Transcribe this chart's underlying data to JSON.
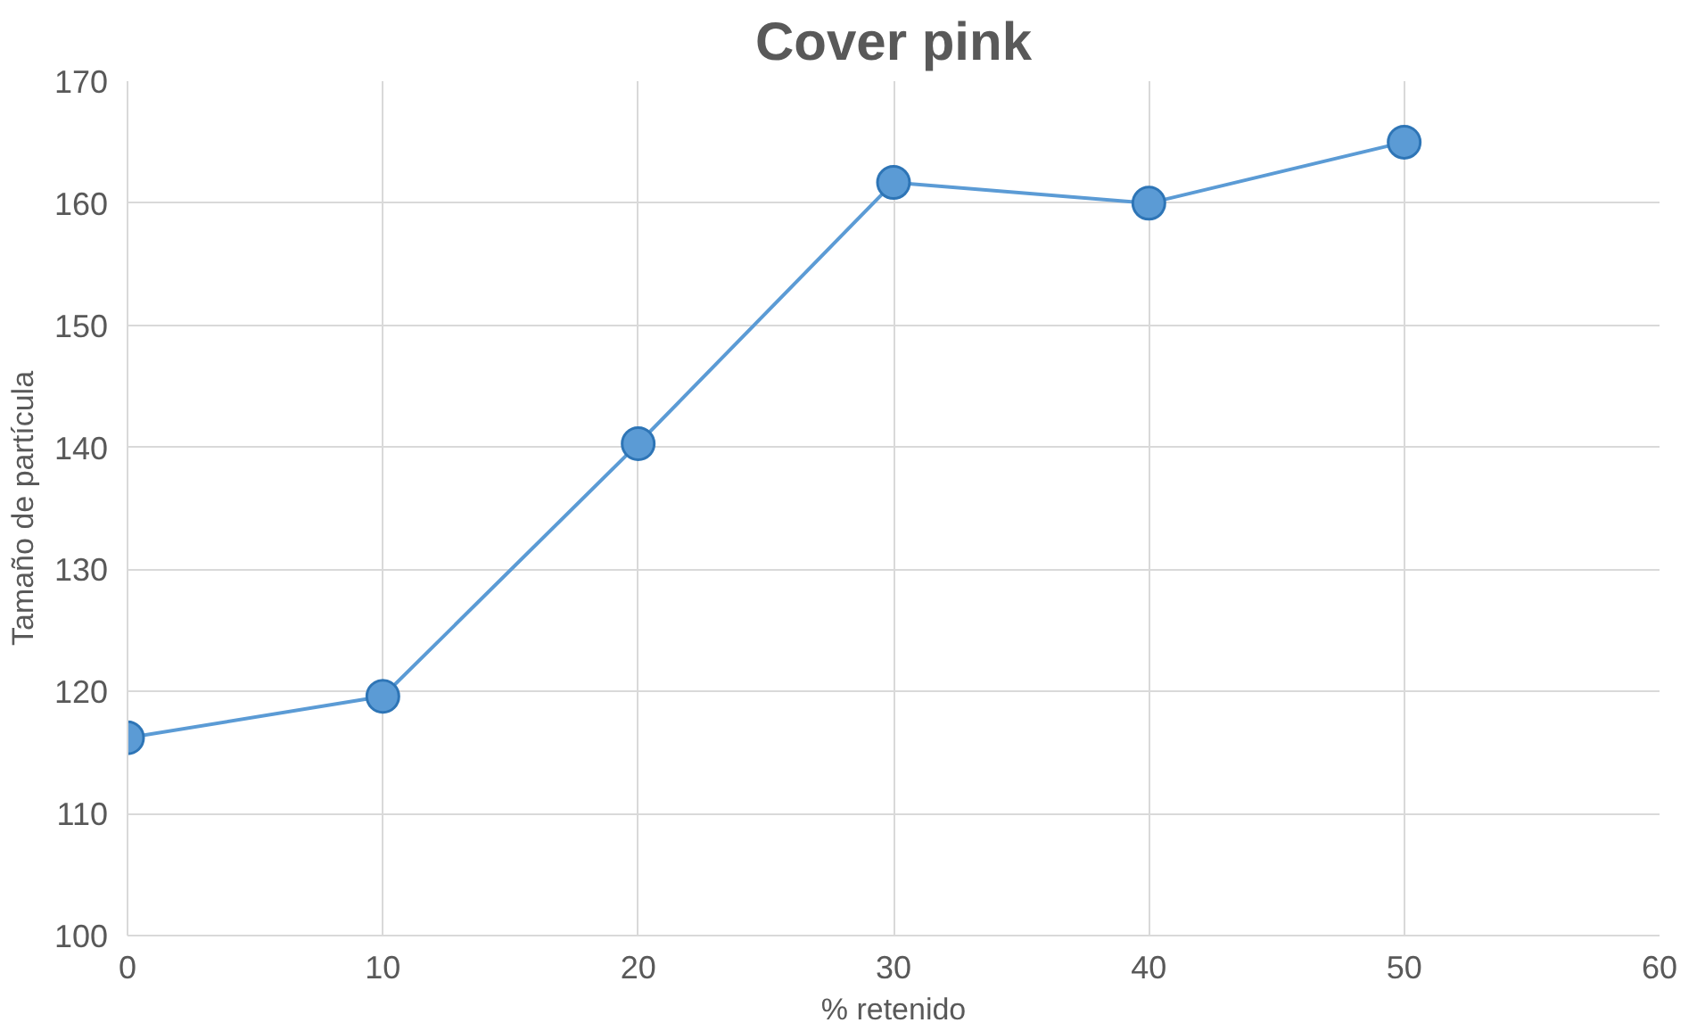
{
  "chart_data": {
    "type": "line",
    "title": "Cover pink",
    "xlabel": "% retenido",
    "ylabel": "Tamaño de partícula",
    "x": [
      0,
      10,
      20,
      30,
      40,
      50
    ],
    "series": [
      {
        "color": "#5b9bd5",
        "values": [
          116.2,
          119.6,
          140.3,
          161.7,
          160.0,
          165.0
        ]
      }
    ],
    "xlim": [
      0,
      60
    ],
    "xticks": [
      0,
      10,
      20,
      30,
      40,
      50,
      60
    ],
    "ylim": [
      100,
      170
    ],
    "yticks": [
      100,
      110,
      120,
      130,
      140,
      150,
      160,
      170
    ],
    "grid": true,
    "marker": "circle",
    "line_style": "solid"
  }
}
